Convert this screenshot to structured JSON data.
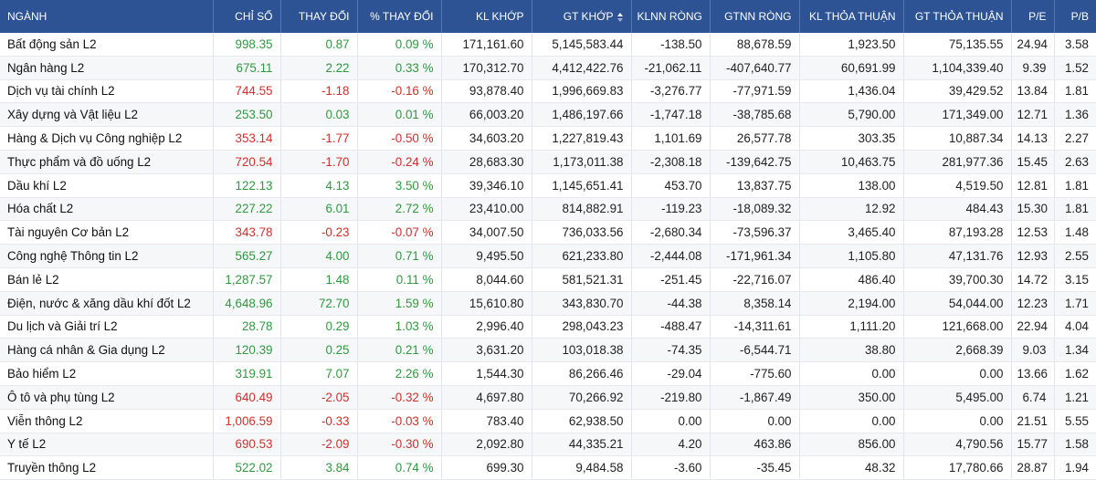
{
  "colors": {
    "header_bg": "#2d5394",
    "up": "#2e9a3e",
    "down": "#d0302b"
  },
  "sort_icon": "sort-desc-icon",
  "columns": [
    "NGÀNH",
    "CHỈ SỐ",
    "THAY ĐỔI",
    "% THAY ĐỔI",
    "KL KHỚP",
    "GT KHỚP",
    "KLNN RÒNG",
    "GTNN RÒNG",
    "KL THỎA THUẬN",
    "GT THỎA THUẬN",
    "P/E",
    "P/B"
  ],
  "rows": [
    {
      "name": "Bất động sản L2",
      "index": "998.35",
      "change": "0.87",
      "pct": "0.09 %",
      "dir": "up",
      "kl_khop": "171,161.60",
      "gt_khop": "5,145,583.44",
      "klnn": "-138.50",
      "gtnn": "88,678.59",
      "kl_tt": "1,923.50",
      "gt_tt": "75,135.55",
      "pe": "24.94",
      "pb": "3.58"
    },
    {
      "name": "Ngân hàng L2",
      "index": "675.11",
      "change": "2.22",
      "pct": "0.33 %",
      "dir": "up",
      "kl_khop": "170,312.70",
      "gt_khop": "4,412,422.76",
      "klnn": "-21,062.11",
      "gtnn": "-407,640.77",
      "kl_tt": "60,691.99",
      "gt_tt": "1,104,339.40",
      "pe": "9.39",
      "pb": "1.52"
    },
    {
      "name": "Dịch vụ tài chính L2",
      "index": "744.55",
      "change": "-1.18",
      "pct": "-0.16 %",
      "dir": "down",
      "kl_khop": "93,878.40",
      "gt_khop": "1,996,669.83",
      "klnn": "-3,276.77",
      "gtnn": "-77,971.59",
      "kl_tt": "1,436.04",
      "gt_tt": "39,429.52",
      "pe": "13.84",
      "pb": "1.81"
    },
    {
      "name": "Xây dựng và Vật liệu L2",
      "index": "253.50",
      "change": "0.03",
      "pct": "0.01 %",
      "dir": "up",
      "kl_khop": "66,003.20",
      "gt_khop": "1,486,197.66",
      "klnn": "-1,747.18",
      "gtnn": "-38,785.68",
      "kl_tt": "5,790.00",
      "gt_tt": "171,349.00",
      "pe": "12.71",
      "pb": "1.36"
    },
    {
      "name": "Hàng & Dịch vụ Công nghiệp L2",
      "index": "353.14",
      "change": "-1.77",
      "pct": "-0.50 %",
      "dir": "down",
      "kl_khop": "34,603.20",
      "gt_khop": "1,227,819.43",
      "klnn": "1,101.69",
      "gtnn": "26,577.78",
      "kl_tt": "303.35",
      "gt_tt": "10,887.34",
      "pe": "14.13",
      "pb": "2.27"
    },
    {
      "name": "Thực phẩm và đồ uống L2",
      "index": "720.54",
      "change": "-1.70",
      "pct": "-0.24 %",
      "dir": "down",
      "kl_khop": "28,683.30",
      "gt_khop": "1,173,011.38",
      "klnn": "-2,308.18",
      "gtnn": "-139,642.75",
      "kl_tt": "10,463.75",
      "gt_tt": "281,977.36",
      "pe": "15.45",
      "pb": "2.63"
    },
    {
      "name": "Dầu khí L2",
      "index": "122.13",
      "change": "4.13",
      "pct": "3.50 %",
      "dir": "up",
      "kl_khop": "39,346.10",
      "gt_khop": "1,145,651.41",
      "klnn": "453.70",
      "gtnn": "13,837.75",
      "kl_tt": "138.00",
      "gt_tt": "4,519.50",
      "pe": "12.81",
      "pb": "1.81"
    },
    {
      "name": "Hóa chất L2",
      "index": "227.22",
      "change": "6.01",
      "pct": "2.72 %",
      "dir": "up",
      "kl_khop": "23,410.00",
      "gt_khop": "814,882.91",
      "klnn": "-119.23",
      "gtnn": "-18,089.32",
      "kl_tt": "12.92",
      "gt_tt": "484.43",
      "pe": "15.30",
      "pb": "1.81"
    },
    {
      "name": "Tài nguyên Cơ bản L2",
      "index": "343.78",
      "change": "-0.23",
      "pct": "-0.07 %",
      "dir": "down",
      "kl_khop": "34,007.50",
      "gt_khop": "736,033.56",
      "klnn": "-2,680.34",
      "gtnn": "-73,596.37",
      "kl_tt": "3,465.40",
      "gt_tt": "87,193.28",
      "pe": "12.53",
      "pb": "1.48"
    },
    {
      "name": "Công nghệ Thông tin L2",
      "index": "565.27",
      "change": "4.00",
      "pct": "0.71 %",
      "dir": "up",
      "kl_khop": "9,495.50",
      "gt_khop": "621,233.80",
      "klnn": "-2,444.08",
      "gtnn": "-171,961.34",
      "kl_tt": "1,105.80",
      "gt_tt": "47,131.76",
      "pe": "12.93",
      "pb": "2.55"
    },
    {
      "name": "Bán lẻ L2",
      "index": "1,287.57",
      "change": "1.48",
      "pct": "0.11 %",
      "dir": "up",
      "kl_khop": "8,044.60",
      "gt_khop": "581,521.31",
      "klnn": "-251.45",
      "gtnn": "-22,716.07",
      "kl_tt": "486.40",
      "gt_tt": "39,700.30",
      "pe": "14.72",
      "pb": "3.15"
    },
    {
      "name": "Điện, nước & xăng dầu khí đốt L2",
      "index": "4,648.96",
      "change": "72.70",
      "pct": "1.59 %",
      "dir": "up",
      "kl_khop": "15,610.80",
      "gt_khop": "343,830.70",
      "klnn": "-44.38",
      "gtnn": "8,358.14",
      "kl_tt": "2,194.00",
      "gt_tt": "54,044.00",
      "pe": "12.23",
      "pb": "1.71"
    },
    {
      "name": "Du lịch và Giải trí L2",
      "index": "28.78",
      "change": "0.29",
      "pct": "1.03 %",
      "dir": "up",
      "kl_khop": "2,996.40",
      "gt_khop": "298,043.23",
      "klnn": "-488.47",
      "gtnn": "-14,311.61",
      "kl_tt": "1,111.20",
      "gt_tt": "121,668.00",
      "pe": "22.94",
      "pb": "4.04"
    },
    {
      "name": "Hàng cá nhân & Gia dụng L2",
      "index": "120.39",
      "change": "0.25",
      "pct": "0.21 %",
      "dir": "up",
      "kl_khop": "3,631.20",
      "gt_khop": "103,018.38",
      "klnn": "-74.35",
      "gtnn": "-6,544.71",
      "kl_tt": "38.80",
      "gt_tt": "2,668.39",
      "pe": "9.03",
      "pb": "1.34"
    },
    {
      "name": "Bảo hiểm L2",
      "index": "319.91",
      "change": "7.07",
      "pct": "2.26 %",
      "dir": "up",
      "kl_khop": "1,544.30",
      "gt_khop": "86,266.46",
      "klnn": "-29.04",
      "gtnn": "-775.60",
      "kl_tt": "0.00",
      "gt_tt": "0.00",
      "pe": "13.66",
      "pb": "1.62"
    },
    {
      "name": "Ô tô và phụ tùng L2",
      "index": "640.49",
      "change": "-2.05",
      "pct": "-0.32 %",
      "dir": "down",
      "kl_khop": "4,697.80",
      "gt_khop": "70,266.92",
      "klnn": "-219.80",
      "gtnn": "-1,867.49",
      "kl_tt": "350.00",
      "gt_tt": "5,495.00",
      "pe": "6.74",
      "pb": "1.21"
    },
    {
      "name": "Viễn thông L2",
      "index": "1,006.59",
      "change": "-0.33",
      "pct": "-0.03 %",
      "dir": "down",
      "kl_khop": "783.40",
      "gt_khop": "62,938.50",
      "klnn": "0.00",
      "gtnn": "0.00",
      "kl_tt": "0.00",
      "gt_tt": "0.00",
      "pe": "21.51",
      "pb": "5.55"
    },
    {
      "name": "Y tế L2",
      "index": "690.53",
      "change": "-2.09",
      "pct": "-0.30 %",
      "dir": "down",
      "kl_khop": "2,092.80",
      "gt_khop": "44,335.21",
      "klnn": "4.20",
      "gtnn": "463.86",
      "kl_tt": "856.00",
      "gt_tt": "4,790.56",
      "pe": "15.77",
      "pb": "1.58"
    },
    {
      "name": "Truyền thông L2",
      "index": "522.02",
      "change": "3.84",
      "pct": "0.74 %",
      "dir": "up",
      "kl_khop": "699.30",
      "gt_khop": "9,484.58",
      "klnn": "-3.60",
      "gtnn": "-35.45",
      "kl_tt": "48.32",
      "gt_tt": "17,780.66",
      "pe": "28.87",
      "pb": "1.94"
    }
  ]
}
